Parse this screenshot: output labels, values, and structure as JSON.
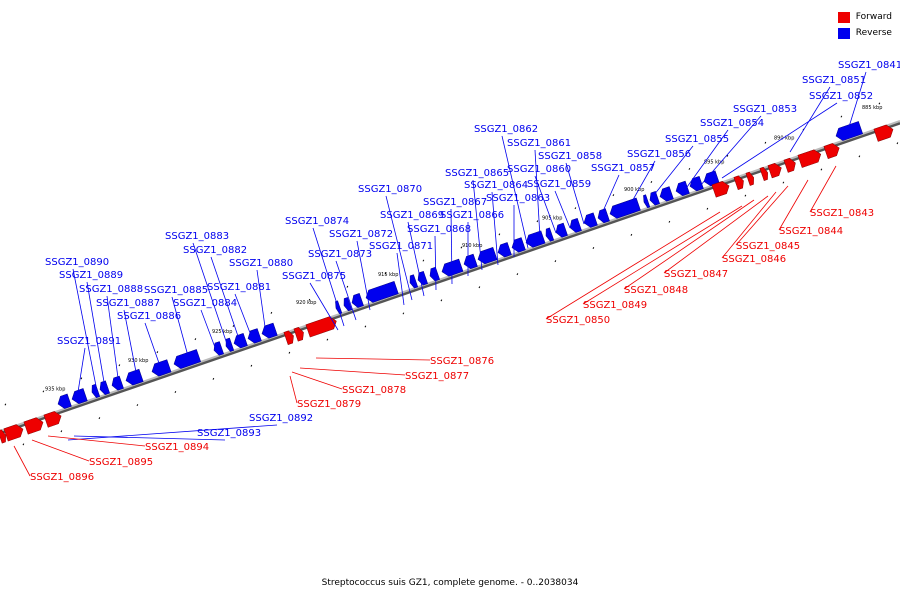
{
  "legend": {
    "forward_label": "Forward",
    "reverse_label": "Reverse",
    "forward_color": "#ee0000",
    "reverse_color": "#0000ee"
  },
  "caption": "Streptococcus suis GZ1, complete genome. - 0..2038034",
  "ticks": [
    {
      "label": "885 kbp",
      "kbp": 885
    },
    {
      "label": "890 kbp",
      "kbp": 890
    },
    {
      "label": "895 kbp",
      "kbp": 895
    },
    {
      "label": "900 kbp",
      "kbp": 900
    },
    {
      "label": "905 kbp",
      "kbp": 905
    },
    {
      "label": "910 kbp",
      "kbp": 910
    },
    {
      "label": "915 kbp",
      "kbp": 915
    },
    {
      "label": "920 kbp",
      "kbp": 920
    },
    {
      "label": "925 kbp",
      "kbp": 925
    },
    {
      "label": "930 kbp",
      "kbp": 930
    },
    {
      "label": "935 kbp",
      "kbp": 935
    }
  ],
  "reverse_genes": [
    "SSGZ1_0841",
    "SSGZ1_0851",
    "SSGZ1_0852",
    "SSGZ1_0853",
    "SSGZ1_0854",
    "SSGZ1_0855",
    "SSGZ1_0856",
    "SSGZ1_0857",
    "SSGZ1_0858",
    "SSGZ1_0859",
    "SSGZ1_0860",
    "SSGZ1_0861",
    "SSGZ1_0862",
    "SSGZ1_0863",
    "SSGZ1_0864",
    "SSGZ1_0865",
    "SSGZ1_0866",
    "SSGZ1_0867",
    "SSGZ1_0868",
    "SSGZ1_0869",
    "SSGZ1_0870",
    "SSGZ1_0871",
    "SSGZ1_0872",
    "SSGZ1_0873",
    "SSGZ1_0874",
    "SSGZ1_0875",
    "SSGZ1_0880",
    "SSGZ1_0881",
    "SSGZ1_0882",
    "SSGZ1_0883",
    "SSGZ1_0884",
    "SSGZ1_0885",
    "SSGZ1_0886",
    "SSGZ1_0887",
    "SSGZ1_0888",
    "SSGZ1_0889",
    "SSGZ1_0890",
    "SSGZ1_0891",
    "SSGZ1_0892",
    "SSGZ1_0893"
  ],
  "forward_genes": [
    "SSGZ1_0843",
    "SSGZ1_0844",
    "SSGZ1_0845",
    "SSGZ1_0846",
    "SSGZ1_0847",
    "SSGZ1_0848",
    "SSGZ1_0849",
    "SSGZ1_0850",
    "SSGZ1_0876",
    "SSGZ1_0877",
    "SSGZ1_0878",
    "SSGZ1_0879",
    "SSGZ1_0894",
    "SSGZ1_0895",
    "SSGZ1_0896"
  ]
}
